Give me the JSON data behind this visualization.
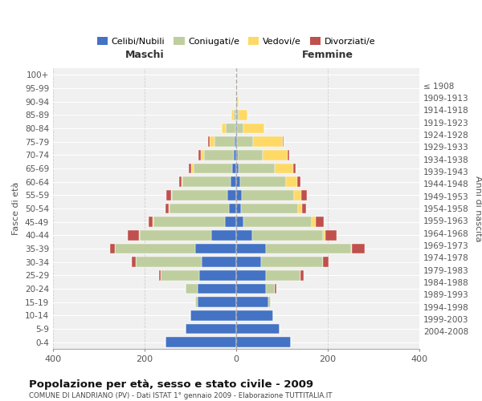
{
  "age_groups": [
    "0-4",
    "5-9",
    "10-14",
    "15-19",
    "20-24",
    "25-29",
    "30-34",
    "35-39",
    "40-44",
    "45-49",
    "50-54",
    "55-59",
    "60-64",
    "65-69",
    "70-74",
    "75-79",
    "80-84",
    "85-89",
    "90-94",
    "95-99",
    "100+"
  ],
  "birth_years": [
    "2004-2008",
    "1999-2003",
    "1994-1998",
    "1989-1993",
    "1984-1988",
    "1979-1983",
    "1974-1978",
    "1969-1973",
    "1964-1968",
    "1959-1963",
    "1954-1958",
    "1949-1953",
    "1944-1948",
    "1939-1943",
    "1934-1938",
    "1929-1933",
    "1924-1928",
    "1919-1923",
    "1914-1918",
    "1909-1913",
    "≤ 1908"
  ],
  "males": {
    "celibi": [
      155,
      110,
      100,
      85,
      85,
      80,
      75,
      90,
      55,
      25,
      15,
      20,
      12,
      8,
      5,
      3,
      2,
      0,
      0,
      0,
      0
    ],
    "coniugati": [
      0,
      0,
      0,
      5,
      25,
      85,
      145,
      175,
      155,
      155,
      130,
      120,
      105,
      85,
      65,
      45,
      20,
      5,
      1,
      0,
      0
    ],
    "vedovi": [
      0,
      0,
      0,
      0,
      0,
      0,
      0,
      0,
      2,
      2,
      2,
      2,
      3,
      5,
      8,
      10,
      10,
      5,
      0,
      0,
      0
    ],
    "divorziati": [
      0,
      0,
      0,
      0,
      0,
      3,
      8,
      10,
      25,
      10,
      8,
      10,
      5,
      5,
      5,
      3,
      0,
      0,
      0,
      0,
      0
    ]
  },
  "females": {
    "nubili": [
      120,
      95,
      80,
      70,
      65,
      65,
      55,
      65,
      35,
      15,
      10,
      12,
      8,
      5,
      3,
      2,
      1,
      0,
      0,
      0,
      0
    ],
    "coniugate": [
      0,
      0,
      0,
      5,
      20,
      75,
      135,
      185,
      155,
      150,
      125,
      115,
      100,
      80,
      55,
      35,
      15,
      5,
      1,
      0,
      0
    ],
    "vedove": [
      0,
      0,
      0,
      0,
      0,
      0,
      0,
      2,
      5,
      8,
      8,
      15,
      25,
      40,
      55,
      65,
      45,
      20,
      5,
      1,
      0
    ],
    "divorziate": [
      0,
      0,
      0,
      0,
      2,
      8,
      12,
      28,
      25,
      18,
      10,
      12,
      8,
      5,
      3,
      2,
      0,
      0,
      0,
      0,
      0
    ]
  },
  "colors": {
    "celibi_nubili": "#4472C4",
    "coniugati": "#BFCE9E",
    "vedovi": "#FFD966",
    "divorziati": "#C0504D"
  },
  "title": "Popolazione per età, sesso e stato civile - 2009",
  "subtitle": "COMUNE DI LANDRIANO (PV) - Dati ISTAT 1° gennaio 2009 - Elaborazione TUTTITALIA.IT",
  "xlabel_left": "Maschi",
  "xlabel_right": "Femmine",
  "ylabel_left": "Fasce di età",
  "ylabel_right": "Anni di nascita",
  "legend_labels": [
    "Celibi/Nubili",
    "Coniugati/e",
    "Vedovi/e",
    "Divorziati/e"
  ],
  "xlim": 400,
  "bg_color": "#ffffff",
  "plot_bg_color": "#f0f0f0",
  "grid_color": "#cccccc"
}
